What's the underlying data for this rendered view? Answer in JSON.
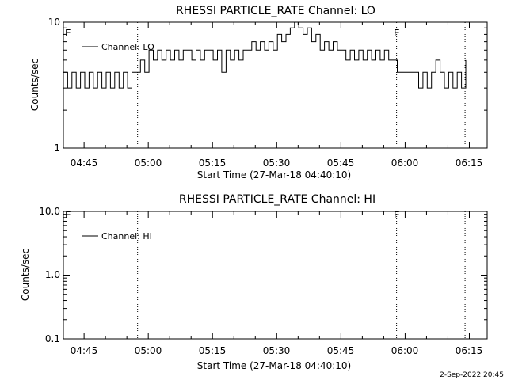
{
  "chart_data": [
    {
      "type": "line",
      "title": "RHESSI PARTICLE_RATE Channel: LO",
      "xlabel": "Start Time (27-Mar-18 04:40:10)",
      "ylabel": "Counts/sec",
      "yscale": "log",
      "ylim": [
        1,
        10
      ],
      "ytick_labels": [
        "1",
        "10"
      ],
      "xlim_minutes_after_start": [
        0,
        99
      ],
      "xtick_labels": [
        "04:45",
        "05:00",
        "05:15",
        "05:30",
        "05:45",
        "06:00",
        "06:15"
      ],
      "event_lines": [
        "04:57:30",
        "05:58:00",
        "06:14:00"
      ],
      "event_markers": [
        {
          "label": "E",
          "at": "start"
        },
        {
          "label": "E",
          "at": "05:58:00"
        }
      ],
      "legend": {
        "entries": [
          "Channel: LO"
        ],
        "position": "top-left"
      },
      "grid": false,
      "series": [
        {
          "name": "Channel: LO",
          "x_times": [
            "04:40:10",
            "04:41:10",
            "04:42:10",
            "04:43:10",
            "04:44:10",
            "04:45:10",
            "04:46:10",
            "04:47:10",
            "04:48:10",
            "04:49:10",
            "04:50:10",
            "04:51:10",
            "04:52:10",
            "04:53:10",
            "04:54:10",
            "04:55:10",
            "04:56:10",
            "04:57:10",
            "04:58:10",
            "04:59:10",
            "05:00:10",
            "05:01:10",
            "05:02:10",
            "05:03:10",
            "05:04:10",
            "05:05:10",
            "05:06:10",
            "05:07:10",
            "05:08:10",
            "05:09:10",
            "05:10:10",
            "05:11:10",
            "05:12:10",
            "05:13:10",
            "05:14:10",
            "05:15:10",
            "05:16:10",
            "05:17:10",
            "05:18:10",
            "05:19:10",
            "05:20:10",
            "05:21:10",
            "05:22:10",
            "05:23:10",
            "05:24:10",
            "05:25:10",
            "05:26:10",
            "05:27:10",
            "05:28:10",
            "05:29:10",
            "05:30:10",
            "05:31:10",
            "05:32:10",
            "05:33:10",
            "05:34:10",
            "05:35:10",
            "05:36:10",
            "05:37:10",
            "05:38:10",
            "05:39:10",
            "05:40:10",
            "05:41:10",
            "05:42:10",
            "05:43:10",
            "05:44:10",
            "05:45:10",
            "05:46:10",
            "05:47:10",
            "05:48:10",
            "05:49:10",
            "05:50:10",
            "05:51:10",
            "05:52:10",
            "05:53:10",
            "05:54:10",
            "05:55:10",
            "05:56:10",
            "05:57:10",
            "05:58:10",
            "05:59:10",
            "06:00:10",
            "06:01:10",
            "06:02:10",
            "06:03:10",
            "06:04:10",
            "06:05:10",
            "06:06:10",
            "06:07:10",
            "06:08:10",
            "06:09:10",
            "06:10:10",
            "06:11:10",
            "06:12:10",
            "06:13:10",
            "06:14:10"
          ],
          "values": [
            4,
            3,
            4,
            3,
            4,
            3,
            4,
            3,
            4,
            3,
            4,
            3,
            4,
            3,
            4,
            3,
            4,
            4,
            5,
            4,
            6,
            5,
            6,
            5,
            6,
            5,
            6,
            5,
            6,
            6,
            5,
            6,
            5,
            6,
            6,
            5,
            6,
            4,
            6,
            5,
            6,
            5,
            6,
            6,
            7,
            6,
            7,
            6,
            7,
            6,
            8,
            7,
            8,
            9,
            10,
            9,
            8,
            9,
            7,
            8,
            6,
            7,
            6,
            7,
            6,
            6,
            5,
            6,
            5,
            6,
            5,
            6,
            5,
            6,
            5,
            6,
            5,
            5,
            4,
            4,
            4,
            4,
            4,
            3,
            4,
            3,
            4,
            5,
            4,
            3,
            4,
            3,
            4,
            3,
            5
          ]
        }
      ]
    },
    {
      "type": "line",
      "title": "RHESSI PARTICLE_RATE Channel: HI",
      "xlabel": "Start Time (27-Mar-18 04:40:10)",
      "ylabel": "Counts/sec",
      "yscale": "log",
      "ylim": [
        0.1,
        10
      ],
      "ytick_labels": [
        "0.1",
        "1.0",
        "10.0"
      ],
      "xlim_minutes_after_start": [
        0,
        99
      ],
      "xtick_labels": [
        "04:45",
        "05:00",
        "05:15",
        "05:30",
        "05:45",
        "06:00",
        "06:15"
      ],
      "event_lines": [
        "04:57:30",
        "05:58:00",
        "06:14:00"
      ],
      "event_markers": [
        {
          "label": "E",
          "at": "start"
        },
        {
          "label": "E",
          "at": "05:58:00"
        }
      ],
      "legend": {
        "entries": [
          "Channel: HI"
        ],
        "position": "top-left"
      },
      "grid": false,
      "series": [
        {
          "name": "Channel: HI",
          "x_times": [],
          "values": []
        }
      ]
    }
  ],
  "footer": {
    "timestamp": "2-Sep-2022 20:45"
  }
}
